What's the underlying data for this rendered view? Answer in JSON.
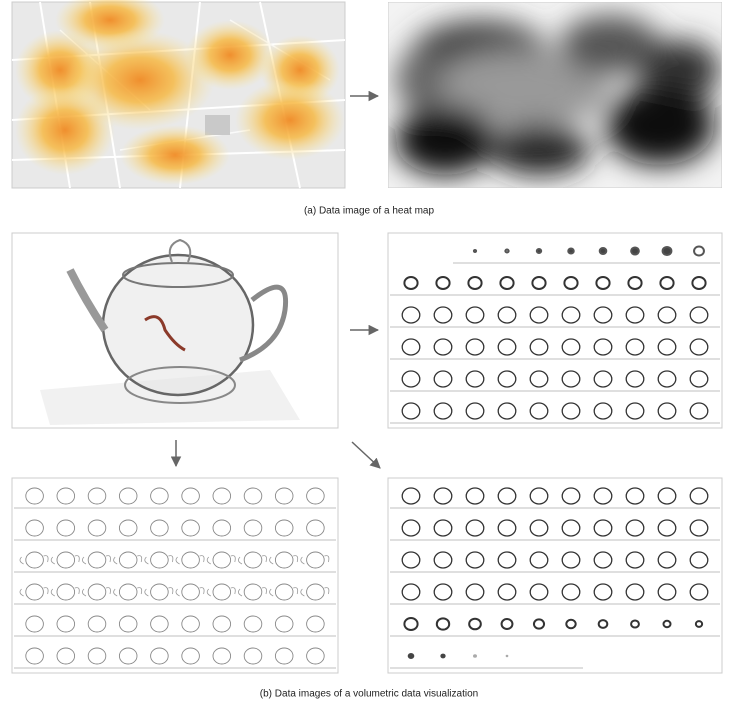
{
  "figure": {
    "captions": [
      "(a) Data image of a heat map",
      "(b) Data images of a volumetric data visualization"
    ]
  }
}
